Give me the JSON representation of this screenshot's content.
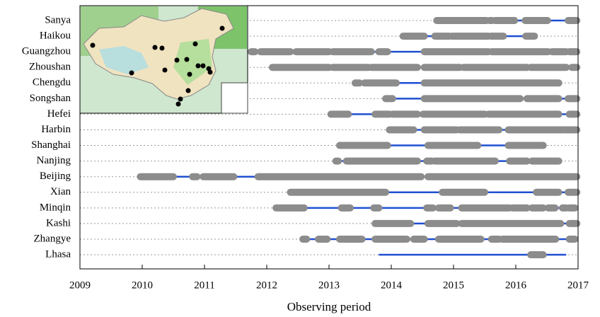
{
  "chart_data": {
    "type": "timeline",
    "xlabel": "Observing period",
    "xlim": [
      2009,
      2017
    ],
    "xticks": [
      2009,
      2010,
      2011,
      2012,
      2013,
      2014,
      2015,
      2016,
      2017
    ],
    "span_color": "#1f4fd2",
    "segment_color": "#8c8c8c",
    "grid": true,
    "stations": [
      {
        "name": "Sanya",
        "span": [
          2014.73,
          2016.98
        ],
        "segments": [
          [
            2014.73,
            2015.53
          ],
          [
            2015.58,
            2015.62
          ],
          [
            2015.67,
            2015.98
          ],
          [
            2016.15,
            2016.51
          ],
          [
            2016.84,
            2016.98
          ]
        ]
      },
      {
        "name": "Haikou",
        "span": [
          2014.19,
          2016.3
        ],
        "segments": [
          [
            2014.19,
            2014.53
          ],
          [
            2014.7,
            2014.93
          ],
          [
            2014.97,
            2015.56
          ],
          [
            2015.6,
            2015.8
          ],
          [
            2016.16,
            2016.3
          ]
        ]
      },
      {
        "name": "Guangzhou",
        "span": [
          2011.75,
          2016.98
        ],
        "segments": [
          [
            2011.75,
            2011.81
          ],
          [
            2011.9,
            2012.38
          ],
          [
            2012.47,
            2013.0
          ],
          [
            2013.06,
            2013.68
          ],
          [
            2013.8,
            2013.94
          ],
          [
            2014.53,
            2015.56
          ],
          [
            2015.61,
            2016.52
          ],
          [
            2016.58,
            2016.81
          ],
          [
            2016.86,
            2016.98
          ]
        ]
      },
      {
        "name": "Zhoushan",
        "span": [
          2012.09,
          2016.98
        ],
        "segments": [
          [
            2012.09,
            2013.0
          ],
          [
            2013.06,
            2013.63
          ],
          [
            2013.68,
            2014.42
          ],
          [
            2014.53,
            2015.1
          ],
          [
            2015.16,
            2016.18
          ],
          [
            2016.24,
            2016.81
          ],
          [
            2016.9,
            2016.98
          ]
        ]
      },
      {
        "name": "Chengdu",
        "span": [
          2013.42,
          2016.69
        ],
        "segments": [
          [
            2013.42,
            2013.49
          ],
          [
            2013.57,
            2014.08
          ],
          [
            2014.53,
            2016.69
          ]
        ]
      },
      {
        "name": "Songshan",
        "span": [
          2013.91,
          2016.98
        ],
        "segments": [
          [
            2013.91,
            2014.02
          ],
          [
            2014.53,
            2016.07
          ],
          [
            2016.18,
            2016.69
          ],
          [
            2016.84,
            2016.98
          ]
        ]
      },
      {
        "name": "Hefei",
        "span": [
          2013.03,
          2016.98
        ],
        "segments": [
          [
            2013.03,
            2013.31
          ],
          [
            2013.74,
            2013.97
          ],
          [
            2014.02,
            2014.42
          ],
          [
            2014.51,
            2015.5
          ],
          [
            2015.56,
            2016.69
          ],
          [
            2016.86,
            2016.98
          ]
        ]
      },
      {
        "name": "Harbin",
        "span": [
          2013.97,
          2016.98
        ],
        "segments": [
          [
            2013.97,
            2014.36
          ],
          [
            2014.53,
            2015.05
          ],
          [
            2015.1,
            2015.73
          ],
          [
            2015.88,
            2016.75
          ],
          [
            2016.78,
            2016.98
          ]
        ]
      },
      {
        "name": "Shanghai",
        "span": [
          2013.17,
          2016.44
        ],
        "segments": [
          [
            2013.17,
            2013.94
          ],
          [
            2014.59,
            2015.39
          ],
          [
            2015.88,
            2016.44
          ]
        ]
      },
      {
        "name": "Nanjing",
        "span": [
          2013.11,
          2016.69
        ],
        "segments": [
          [
            2013.11,
            2013.15
          ],
          [
            2013.28,
            2014.42
          ],
          [
            2014.57,
            2014.65
          ],
          [
            2014.7,
            2015.67
          ],
          [
            2015.9,
            2016.18
          ],
          [
            2016.26,
            2016.69
          ]
        ]
      },
      {
        "name": "Beijing",
        "span": [
          2009.97,
          2016.98
        ],
        "segments": [
          [
            2009.97,
            2010.5
          ],
          [
            2010.81,
            2010.88
          ],
          [
            2010.98,
            2011.47
          ],
          [
            2011.86,
            2014.48
          ],
          [
            2014.59,
            2016.98
          ]
        ]
      },
      {
        "name": "Xian",
        "span": [
          2012.38,
          2016.98
        ],
        "segments": [
          [
            2012.38,
            2013.91
          ],
          [
            2014.82,
            2015.5
          ],
          [
            2016.33,
            2016.69
          ],
          [
            2016.84,
            2016.98
          ]
        ]
      },
      {
        "name": "Minqin",
        "span": [
          2012.15,
          2016.95
        ],
        "segments": [
          [
            2012.15,
            2012.6
          ],
          [
            2013.2,
            2013.34
          ],
          [
            2013.72,
            2013.8
          ],
          [
            2014.57,
            2014.67
          ],
          [
            2014.76,
            2014.95
          ],
          [
            2015.13,
            2015.9
          ],
          [
            2015.95,
            2016.18
          ],
          [
            2016.26,
            2016.44
          ],
          [
            2016.52,
            2016.63
          ],
          [
            2016.75,
            2016.81
          ],
          [
            2016.86,
            2016.95
          ]
        ]
      },
      {
        "name": "Kashi",
        "span": [
          2013.74,
          2016.98
        ],
        "segments": [
          [
            2013.74,
            2014.31
          ],
          [
            2014.59,
            2015.05
          ],
          [
            2015.13,
            2016.72
          ],
          [
            2016.86,
            2016.98
          ]
        ]
      },
      {
        "name": "Zhangye",
        "span": [
          2012.58,
          2016.95
        ],
        "segments": [
          [
            2012.58,
            2012.64
          ],
          [
            2012.83,
            2012.97
          ],
          [
            2013.17,
            2013.53
          ],
          [
            2013.74,
            2014.25
          ],
          [
            2014.36,
            2014.53
          ],
          [
            2014.76,
            2015.44
          ],
          [
            2015.61,
            2015.73
          ],
          [
            2015.78,
            2016.64
          ],
          [
            2016.86,
            2016.95
          ]
        ]
      },
      {
        "name": "Lhasa",
        "span": [
          2013.8,
          2016.81
        ],
        "segments": [
          [
            2016.24,
            2016.44
          ]
        ]
      }
    ]
  }
}
